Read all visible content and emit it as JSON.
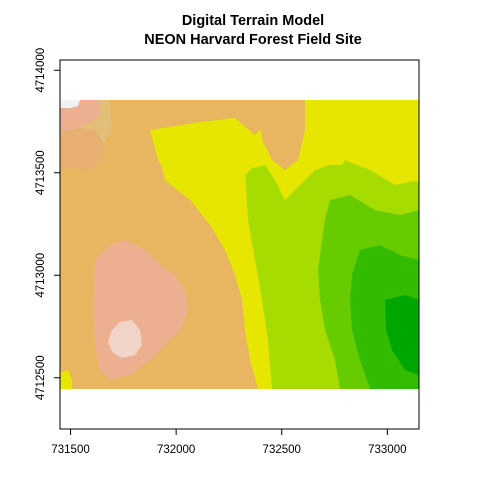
{
  "chart_data": {
    "type": "heatmap",
    "title": [
      "Digital Terrain Model",
      "NEON Harvard Forest Field Site"
    ],
    "xlabel": "",
    "ylabel": "",
    "xlim": [
      731450,
      733150
    ],
    "ylim": [
      4712250,
      4714050
    ],
    "x_ticks": [
      731500,
      732000,
      732500,
      733000
    ],
    "y_ticks": [
      4712500,
      4713000,
      4713500,
      4714000
    ],
    "raster_extent": {
      "xmin": 731453,
      "xmax": 733150,
      "ymin": 4712471,
      "ymax": 4713838
    },
    "color_ramp": "terrain.colors (green = low elevation, pink/white = high elevation)",
    "colors": {
      "low": "#00a600",
      "mid": "#e6e600",
      "high_tan": "#e8b560",
      "high_pink": "#ecb090",
      "peak": "#f2f2f2"
    },
    "grid": false,
    "legend": "none"
  }
}
